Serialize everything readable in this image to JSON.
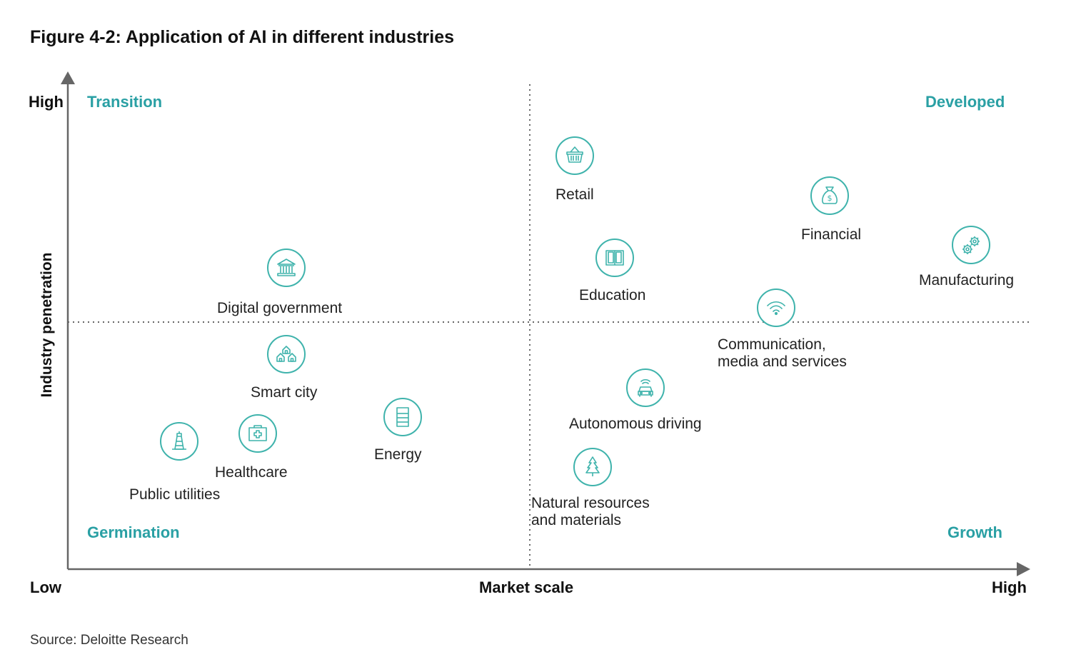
{
  "title": "Figure 4-2: Application of AI in different industries",
  "axes": {
    "y_label": "Industry penetration",
    "y_high": "High",
    "x_label": "Market scale",
    "x_low": "Low",
    "x_high": "High"
  },
  "quadrants": {
    "top_left": "Transition",
    "top_right": "Developed",
    "bottom_left": "Germination",
    "bottom_right": "Growth"
  },
  "industries": [
    {
      "name": "Retail",
      "icon": "basket-icon"
    },
    {
      "name": "Financial",
      "icon": "money-bag-icon"
    },
    {
      "name": "Manufacturing",
      "icon": "gears-icon"
    },
    {
      "name": "Education",
      "icon": "book-icon"
    },
    {
      "name": "Communication, media and services",
      "line1": "Communication,",
      "line2": "media and services",
      "icon": "wifi-icon"
    },
    {
      "name": "Digital government",
      "icon": "government-building-icon"
    },
    {
      "name": "Smart city",
      "icon": "houses-icon"
    },
    {
      "name": "Healthcare",
      "icon": "first-aid-kit-icon"
    },
    {
      "name": "Energy",
      "icon": "battery-icon"
    },
    {
      "name": "Public utilities",
      "icon": "lighthouse-icon"
    },
    {
      "name": "Autonomous driving",
      "icon": "car-signal-icon"
    },
    {
      "name": "Natural resources and materials",
      "line1": "Natural resources",
      "line2": "and materials",
      "icon": "tree-icon"
    }
  ],
  "source": "Source: Deloitte Research",
  "colors": {
    "accent": "#2aa0a4",
    "icon_stroke": "#3fb3ac",
    "axis": "#666666"
  }
}
